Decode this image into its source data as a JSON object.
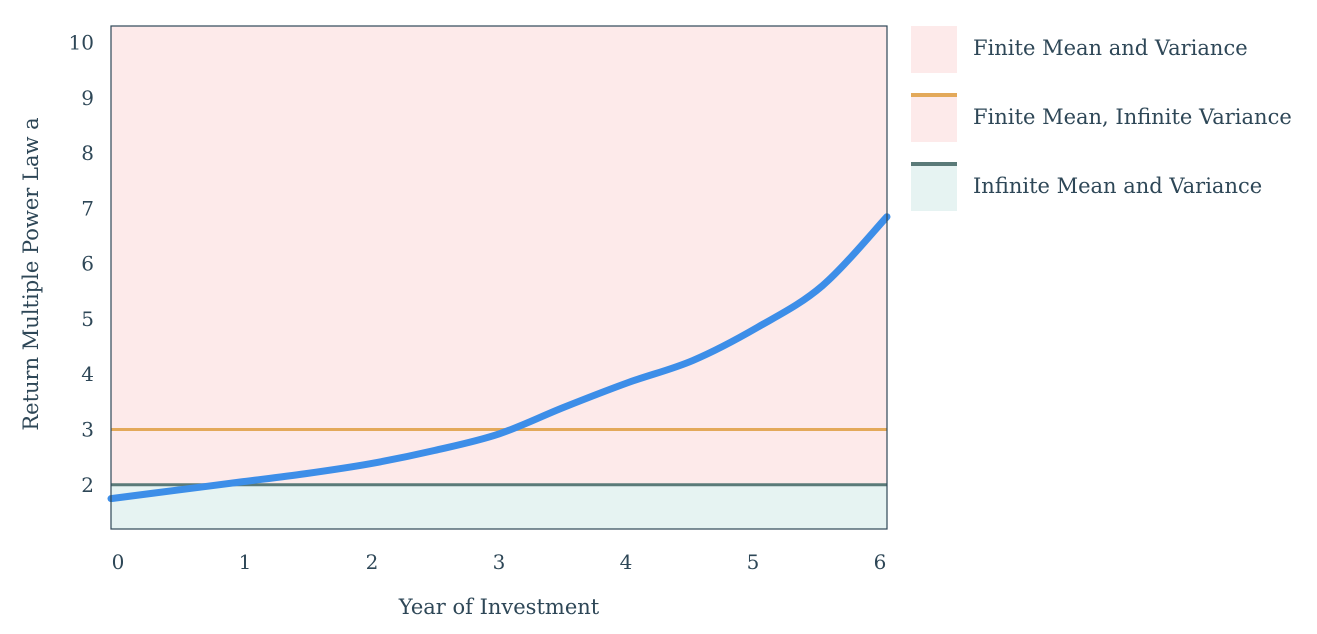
{
  "colors": {
    "finite_region": "#fdeaea",
    "infinite_region": "#e6f3f2",
    "finite_mean_line": "#e3a95a",
    "infinite_mean_line": "#5a7a78",
    "curve": "#3d8ee8",
    "frame": "#2e4757"
  },
  "legend": {
    "items": [
      {
        "label": "Finite Mean and Variance"
      },
      {
        "label": "Finite Mean, Infinite Variance"
      },
      {
        "label": "Infinite Mean and Variance"
      }
    ]
  },
  "chart_data": {
    "type": "line",
    "title": "",
    "xlabel": "Year of Investment",
    "ylabel": "Return Multiple Power Law a",
    "xlim": [
      0,
      6
    ],
    "ylim": [
      1.2,
      10.3
    ],
    "xticks": [
      0,
      1,
      2,
      3,
      4,
      5,
      6
    ],
    "yticks": [
      2,
      3,
      4,
      5,
      6,
      7,
      8,
      9,
      10
    ],
    "grid": false,
    "legend_position": "right",
    "regions": [
      {
        "from": 2,
        "to": 10.3,
        "color": "#fdeaea"
      },
      {
        "from": 1.2,
        "to": 2,
        "color": "#e6f3f2"
      }
    ],
    "hlines": [
      {
        "y": 3,
        "color": "#e3a95a"
      },
      {
        "y": 2,
        "color": "#5a7a78"
      }
    ],
    "series": [
      {
        "x": [
          0,
          0.5,
          1,
          1.5,
          2,
          2.5,
          3,
          3.5,
          4,
          4.5,
          5,
          5.5,
          6
        ],
        "y": [
          1.75,
          1.9,
          2.05,
          2.2,
          2.38,
          2.62,
          2.92,
          3.4,
          3.85,
          4.25,
          4.85,
          5.6,
          6.85
        ]
      }
    ]
  }
}
